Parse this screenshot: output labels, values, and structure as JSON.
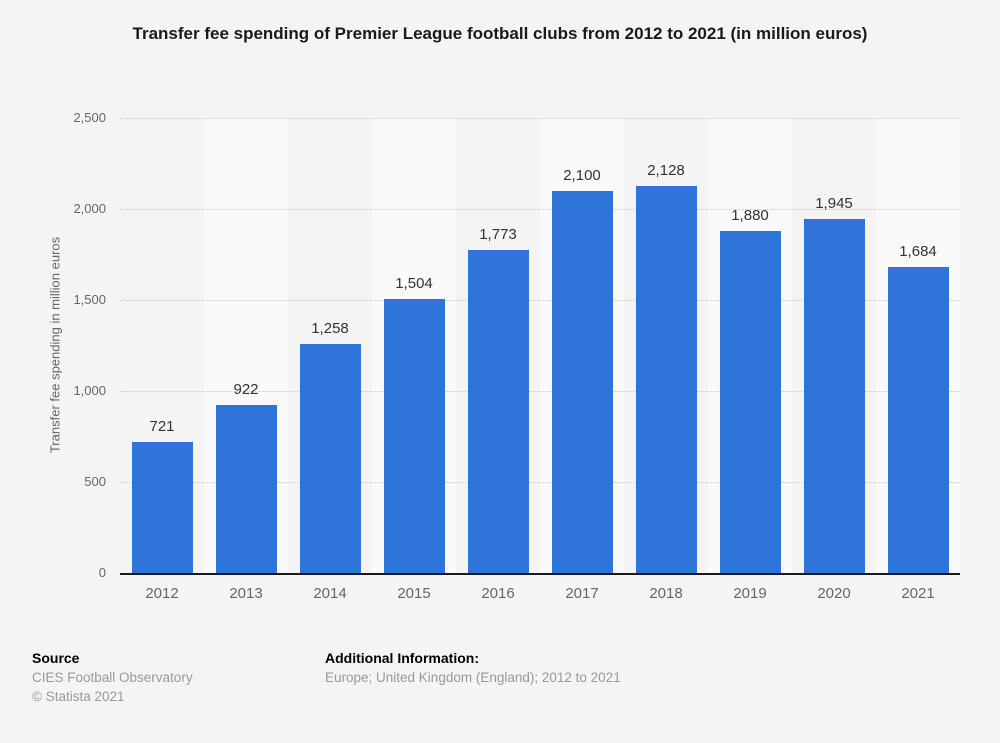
{
  "header": {
    "title": "Transfer fee spending of Premier League football clubs from 2012 to 2021 (in million euros)"
  },
  "chart_data": {
    "type": "bar",
    "title": "Transfer fee spending of Premier League football clubs from 2012 to 2021 (in million euros)",
    "categories": [
      "2012",
      "2013",
      "2014",
      "2015",
      "2016",
      "2017",
      "2018",
      "2019",
      "2020",
      "2021"
    ],
    "values": [
      721,
      922,
      1258,
      1504,
      1773,
      2100,
      2128,
      1880,
      1945,
      1684
    ],
    "value_labels": [
      "721",
      "922",
      "1,258",
      "1,504",
      "1,773",
      "2,100",
      "2,128",
      "1,880",
      "1,945",
      "1,684"
    ],
    "xlabel": "",
    "ylabel": "Transfer fee spending in million euros",
    "ylim": [
      0,
      2500
    ],
    "ytick_interval": 500,
    "ytick_labels": [
      "0",
      "500",
      "1,000",
      "1,500",
      "2,000",
      "2,500"
    ],
    "grid": "horizontal-dotted",
    "legend": "none"
  },
  "colors": {
    "background": "#f4f4f4",
    "plot_band": "#fafafa",
    "bar": "#2e74d9",
    "grid_line": "#c9c9c9",
    "axis_line": "#1a1a1a",
    "value_label": "#333333",
    "tick_label": "#666666"
  },
  "footer": {
    "source_label": "Source",
    "source_name": "CIES Football Observatory",
    "copyright": "© Statista 2021",
    "additional_label": "Additional Information:",
    "additional_text": "Europe; United Kingdom (England); 2012 to 2021"
  }
}
